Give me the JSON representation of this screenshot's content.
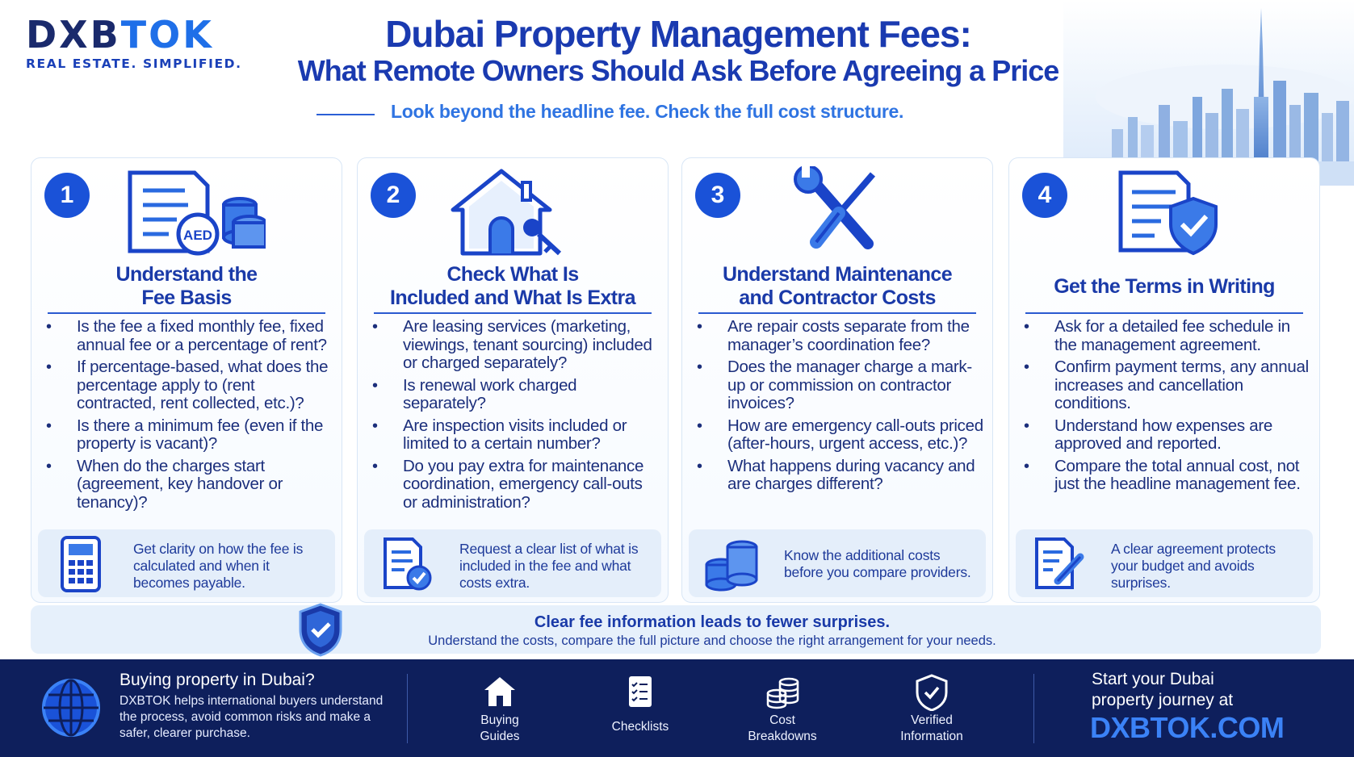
{
  "brand": {
    "logo_part1": "DXB",
    "logo_part2": "TOK",
    "tagline": "REAL ESTATE. SIMPLIFIED."
  },
  "header": {
    "title_line1": "Dubai Property Management Fees:",
    "title_line2": "What Remote Owners Should Ask Before Agreeing a Price",
    "subtitle": "Look beyond the headline fee. Check the full cost structure."
  },
  "cards": [
    {
      "number": "1",
      "icon": "fee-document-coins-icon",
      "icon_badge": "AED",
      "title_line1": "Understand the",
      "title_line2": "Fee Basis",
      "bullets": [
        "Is the fee a fixed monthly fee, fixed annual fee or a percentage of rent?",
        "If percentage-based, what does the percentage apply to (rent contracted, rent collected, etc.)?",
        "Is there a minimum fee (even if the property is vacant)?",
        "When do the charges start (agreement, key handover or tenancy)?"
      ],
      "tip_icon": "calculator-icon",
      "tip": "Get clarity on how the fee is calculated and when it becomes payable."
    },
    {
      "number": "2",
      "icon": "house-key-icon",
      "title_line1": "Check What Is",
      "title_line2": "Included and What Is Extra",
      "bullets": [
        "Are leasing services (marketing, viewings, tenant sourcing) included or charged separately?",
        "Is renewal work charged separately?",
        "Are inspection visits included or limited to a certain number?",
        "Do you pay extra for maintenance coordination, emergency call-outs or administration?"
      ],
      "tip_icon": "checklist-document-icon",
      "tip": "Request a clear list of what is included in the fee and what costs extra."
    },
    {
      "number": "3",
      "icon": "wrench-screwdriver-icon",
      "title_line1": "Understand Maintenance",
      "title_line2": "and Contractor Costs",
      "bullets": [
        "Are repair costs separate from the manager’s coordination fee?",
        "Does the manager charge a mark-up or commission on contractor invoices?",
        "How are emergency call-outs priced (after-hours, urgent access, etc.)?",
        "What happens during vacancy and are charges different?"
      ],
      "tip_icon": "coin-stacks-icon",
      "tip": "Know the additional costs before you compare providers."
    },
    {
      "number": "4",
      "icon": "document-shield-icon",
      "title_line1": "Get the Terms in Writing",
      "title_line2": "",
      "bullets": [
        "Ask for a detailed fee schedule in the management agreement.",
        "Confirm payment terms, any annual increases and cancellation conditions.",
        "Understand how expenses are approved and reported.",
        "Compare the total annual cost, not just the headline management fee."
      ],
      "tip_icon": "document-pen-icon",
      "tip": "A clear agreement protects your budget and avoids surprises."
    }
  ],
  "banner": {
    "icon": "shield-check-icon",
    "headline": "Clear fee information leads to fewer surprises.",
    "text": "Understand the costs, compare the full picture and choose the right arrangement for your needs."
  },
  "footer": {
    "icon": "globe-icon",
    "question": "Buying property in Dubai?",
    "description": "DXBTOK helps international buyers understand the process, avoid common risks and make a safer, clearer purchase.",
    "items": [
      {
        "icon": "house-icon",
        "label_line1": "Buying",
        "label_line2": "Guides"
      },
      {
        "icon": "checklist-icon",
        "label_line1": "Checklists",
        "label_line2": ""
      },
      {
        "icon": "coins-icon",
        "label_line1": "Cost",
        "label_line2": "Breakdowns"
      },
      {
        "icon": "verified-shield-icon",
        "label_line1": "Verified",
        "label_line2": "Information"
      }
    ],
    "cta_line1": "Start your Dubai",
    "cta_line2": "property journey at",
    "cta_url": "DXBTOK.COM"
  },
  "colors": {
    "navy": "#1a2a6c",
    "brand_blue": "#1f6fe8",
    "title_blue": "#1a3ab0",
    "accent_blue": "#2f74e2",
    "tip_bg": "#e4eefa",
    "footer_bg": "#0e1f5c",
    "url_blue": "#3b82f6"
  }
}
